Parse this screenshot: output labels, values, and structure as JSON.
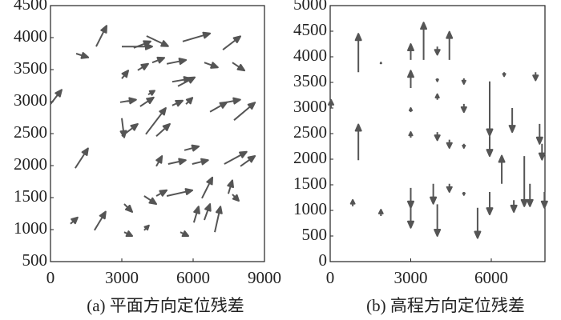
{
  "chart_data": [
    {
      "type": "quiver",
      "title": "(a) 平面方向定位残差",
      "color": "#555555",
      "xlim": [
        0,
        9000
      ],
      "ylim": [
        500,
        4500
      ],
      "xticks": [
        0,
        3000,
        6000,
        9000
      ],
      "yticks": [
        500,
        1000,
        1500,
        2000,
        2500,
        3000,
        3500,
        4000,
        4500
      ],
      "x": [
        0,
        1080,
        1920,
        3000,
        3500,
        4040,
        4890,
        5560,
        7250,
        3000,
        3670,
        4280,
        6470,
        7650,
        5120,
        5360,
        2930,
        3770,
        4110,
        5120,
        5700,
        6710,
        7410,
        7720,
        3000,
        3000,
        4010,
        4450,
        1040,
        5630,
        4450,
        4950,
        5960,
        7310,
        7990,
        3940,
        4450,
        4890,
        6370,
        7480,
        840,
        1850,
        3100,
        3100,
        3940,
        5460,
        6030,
        6470,
        6910,
        7650
      ],
      "y": [
        2960,
        3750,
        3860,
        3860,
        3840,
        4025,
        3590,
        3940,
        3810,
        3360,
        3490,
        3610,
        3610,
        3610,
        3310,
        3240,
        2990,
        2925,
        3110,
        2940,
        2960,
        2840,
        2990,
        2710,
        2460,
        2740,
        2490,
        2460,
        1960,
        2240,
        1990,
        2025,
        2025,
        2025,
        1990,
        1525,
        1525,
        1525,
        1490,
        1560,
        1090,
        990,
        1400,
        960,
        990,
        960,
        1110,
        1150,
        960,
        1550
      ],
      "u": [
        470,
        510,
        440,
        1280,
        710,
        910,
        810,
        1150,
        740,
        270,
        440,
        510,
        570,
        510,
        780,
        710,
        670,
        570,
        270,
        440,
        270,
        710,
        570,
        880,
        670,
        100,
        840,
        570,
        540,
        610,
        240,
        740,
        670,
        940,
        610,
        510,
        440,
        1080,
        440,
        170,
        300,
        470,
        340,
        340,
        200,
        340,
        200,
        240,
        240,
        270
      ],
      "v": [
        225,
        -60,
        325,
        0,
        100,
        -160,
        60,
        125,
        210,
        125,
        100,
        75,
        -75,
        -125,
        50,
        140,
        40,
        140,
        60,
        75,
        100,
        150,
        40,
        275,
        190,
        -300,
        410,
        190,
        310,
        60,
        160,
        60,
        60,
        190,
        160,
        -125,
        90,
        90,
        325,
        210,
        100,
        290,
        -125,
        -60,
        75,
        -60,
        250,
        250,
        400,
        -100
      ]
    },
    {
      "type": "quiver",
      "title": "(b) 高程方向定位残差",
      "color": "#555555",
      "xlim": [
        0,
        8000
      ],
      "ylim": [
        0,
        5000
      ],
      "xticks": [
        0,
        3000,
        6000
      ],
      "yticks": [
        0,
        500,
        1000,
        1500,
        2000,
        2500,
        3000,
        3500,
        4000,
        4500,
        5000
      ],
      "x": [
        30,
        840,
        1050,
        1050,
        1890,
        1890,
        3000,
        3000,
        3000,
        3000,
        3000,
        3000,
        3480,
        3840,
        3990,
        3990,
        3990,
        3990,
        3990,
        4440,
        4440,
        4440,
        4980,
        4980,
        4980,
        4980,
        5490,
        5940,
        5940,
        5940,
        6390,
        6480,
        6780,
        6840,
        7230,
        7440,
        7650,
        7800,
        7890,
        7980
      ],
      "y": [
        3000,
        1080,
        1980,
        3700,
        890,
        3860,
        3390,
        3940,
        2920,
        2420,
        1440,
        1050,
        3940,
        1520,
        3580,
        3160,
        4200,
        2530,
        1120,
        3940,
        2380,
        1520,
        3580,
        3080,
        2300,
        1360,
        1050,
        3520,
        2450,
        1360,
        1520,
        3700,
        3000,
        1200,
        2060,
        1520,
        3700,
        2690,
        2300,
        1360
      ],
      "u": [
        0,
        0,
        0,
        0,
        0,
        0,
        0,
        0,
        0,
        0,
        0,
        0,
        0,
        0,
        0,
        0,
        0,
        0,
        0,
        0,
        0,
        0,
        0,
        0,
        0,
        0,
        0,
        0,
        0,
        0,
        0,
        0,
        0,
        0,
        0,
        0,
        0,
        0,
        0,
        0
      ],
      "v": [
        160,
        125,
        700,
        750,
        125,
        30,
        340,
        310,
        80,
        110,
        -390,
        -390,
        730,
        -390,
        -60,
        110,
        -160,
        -160,
        -620,
        550,
        -160,
        -160,
        -110,
        -160,
        -80,
        -60,
        -590,
        -1060,
        -390,
        -440,
        550,
        -80,
        -470,
        -230,
        -980,
        -440,
        -160,
        -390,
        -310,
        -310
      ]
    }
  ]
}
